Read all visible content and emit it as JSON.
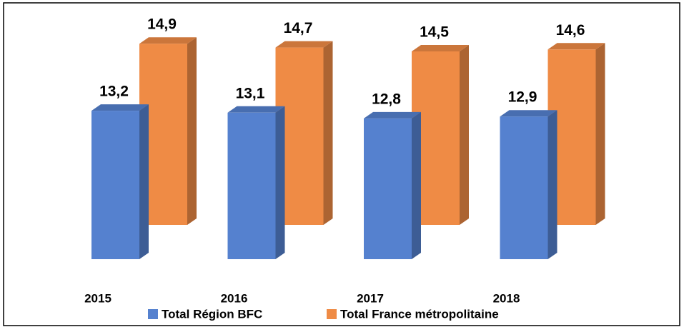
{
  "chart_data": {
    "type": "bar3d",
    "categories": [
      "2015",
      "2016",
      "2017",
      "2018"
    ],
    "series": [
      {
        "name": "Total Région BFC",
        "color": "#5581cf",
        "values": [
          13.2,
          13.1,
          12.8,
          12.9
        ],
        "value_labels": [
          "13,2",
          "13,1",
          "12,8",
          "12,9"
        ]
      },
      {
        "name": "Total France métropolitaine",
        "color": "#ef8b45",
        "values": [
          14.9,
          14.7,
          14.5,
          14.6
        ],
        "value_labels": [
          "14,9",
          "14,7",
          "14,5",
          "14,6"
        ]
      }
    ],
    "ylim": [
      5.5,
      15.5
    ],
    "legend": "bottom"
  }
}
